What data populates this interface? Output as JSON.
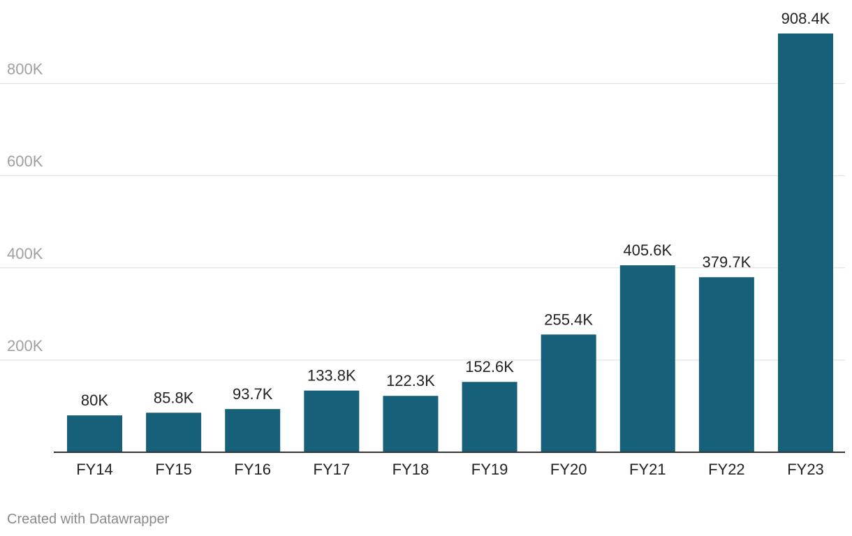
{
  "chart_data": {
    "type": "bar",
    "title": "",
    "xlabel": "",
    "ylabel": "",
    "categories": [
      "FY14",
      "FY15",
      "FY16",
      "FY17",
      "FY18",
      "FY19",
      "FY20",
      "FY21",
      "FY22",
      "FY23"
    ],
    "values": [
      80000,
      85800,
      93700,
      133800,
      122300,
      152600,
      255400,
      405600,
      379700,
      908400
    ],
    "value_labels": [
      "80K",
      "85.8K",
      "93.7K",
      "133.8K",
      "122.3K",
      "152.6K",
      "255.4K",
      "405.6K",
      "379.7K",
      "908.4K"
    ],
    "ylim": [
      0,
      908400
    ],
    "y_ticks": [
      200000,
      400000,
      600000,
      800000
    ],
    "y_tick_labels": [
      "200K",
      "400K",
      "600K",
      "800K"
    ],
    "grid": true,
    "bar_color": "#17607a"
  },
  "credit": "Created with Datawrapper"
}
